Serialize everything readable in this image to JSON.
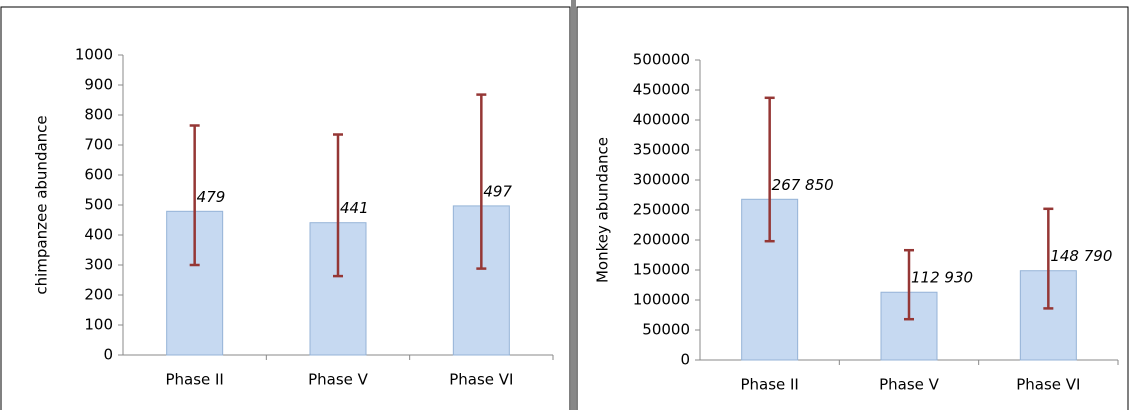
{
  "chart_data": [
    {
      "type": "bar",
      "y_label": "chimpanzee abundance",
      "categories": [
        "Phase II",
        "Phase V",
        "Phase VI"
      ],
      "values": [
        479,
        441,
        497
      ],
      "upper": [
        765,
        735,
        868
      ],
      "lower": [
        300,
        263,
        288
      ],
      "color": "#c6d9f1",
      "error_color": "#953735",
      "ylim": [
        0,
        1000
      ],
      "yticks": [
        0,
        100,
        200,
        300,
        400,
        500,
        600,
        700,
        800,
        900,
        1000
      ]
    },
    {
      "type": "bar",
      "y_label": "Monkey abundance",
      "categories": [
        "Phase II",
        "Phase V",
        "Phase VI"
      ],
      "values": [
        267850,
        112930,
        148790
      ],
      "value_labels": [
        "267 850",
        "112 930",
        "148 790"
      ],
      "upper": [
        437000,
        183000,
        252000
      ],
      "lower": [
        198000,
        68000,
        86000
      ],
      "color": "#c6d9f1",
      "error_color": "#953735",
      "ylim": [
        0,
        500000
      ],
      "yticks": [
        0,
        50000,
        100000,
        150000,
        200000,
        250000,
        300000,
        350000,
        400000,
        450000,
        500000
      ]
    }
  ]
}
